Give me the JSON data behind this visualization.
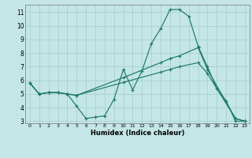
{
  "xlabel": "Humidex (Indice chaleur)",
  "bg_color": "#c5e6e6",
  "grid_color": "#a8d0d0",
  "line_color": "#1e7a65",
  "xlim": [
    -0.5,
    23.5
  ],
  "ylim": [
    2.85,
    11.55
  ],
  "xticks": [
    0,
    1,
    2,
    3,
    4,
    5,
    6,
    7,
    8,
    9,
    10,
    11,
    12,
    13,
    14,
    15,
    16,
    17,
    18,
    19,
    20,
    21,
    22,
    23
  ],
  "yticks": [
    3,
    4,
    5,
    6,
    7,
    8,
    9,
    10,
    11
  ],
  "line1_x": [
    0,
    1,
    2,
    3,
    4,
    5,
    6,
    7,
    8,
    9,
    10,
    11,
    12,
    13,
    14,
    15,
    16,
    17,
    18,
    19,
    20,
    21,
    22,
    23
  ],
  "line1_y": [
    5.8,
    5.0,
    5.1,
    5.1,
    5.0,
    4.1,
    3.2,
    3.3,
    3.4,
    4.6,
    6.8,
    5.3,
    6.7,
    8.7,
    9.8,
    11.2,
    11.2,
    10.7,
    8.5,
    7.0,
    5.4,
    4.5,
    3.0,
    3.0
  ],
  "line2_x": [
    0,
    1,
    2,
    3,
    4,
    5,
    10,
    14,
    15,
    16,
    18,
    19,
    22,
    23
  ],
  "line2_y": [
    5.8,
    5.0,
    5.1,
    5.1,
    5.0,
    4.9,
    6.2,
    7.3,
    7.6,
    7.8,
    8.4,
    6.8,
    3.2,
    3.0
  ],
  "line3_x": [
    0,
    1,
    2,
    3,
    4,
    5,
    10,
    14,
    15,
    16,
    18,
    19,
    22,
    23
  ],
  "line3_y": [
    5.8,
    5.0,
    5.1,
    5.1,
    5.0,
    4.9,
    5.85,
    6.6,
    6.8,
    7.0,
    7.3,
    6.5,
    3.2,
    3.0
  ]
}
